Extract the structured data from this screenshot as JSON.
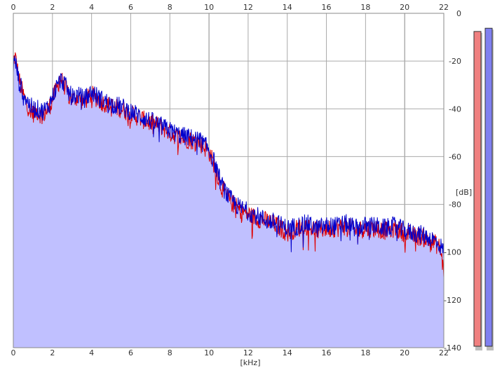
{
  "chart_data": {
    "type": "area",
    "xlabel": "[kHz]",
    "ylabel": "[dB]",
    "xlim": [
      0,
      22
    ],
    "ylim": [
      -140,
      0
    ],
    "x_ticks": [
      0,
      2,
      4,
      6,
      8,
      10,
      12,
      14,
      16,
      18,
      20,
      22
    ],
    "y_ticks": [
      0,
      -20,
      -40,
      -60,
      -80,
      -100,
      -120,
      -140
    ],
    "x_tick_labels": [
      "0",
      "2",
      "4",
      "6",
      "8",
      "10",
      "12",
      "14",
      "16",
      "18",
      "20",
      "22"
    ],
    "y_tick_labels": [
      "0",
      "-20",
      "-40",
      "-60",
      "-80",
      "-100",
      "-120",
      "-140"
    ],
    "grid": true,
    "fill_color": "#c0c0ff",
    "series": [
      {
        "color": "#e00000",
        "x": [
          0,
          0.1,
          0.3,
          0.5,
          0.8,
          1.0,
          1.2,
          1.5,
          1.8,
          2.0,
          2.2,
          2.4,
          2.6,
          2.8,
          3.0,
          3.3,
          3.6,
          4.0,
          4.5,
          5.0,
          5.5,
          6.0,
          6.5,
          7.0,
          7.5,
          8.0,
          8.5,
          9.0,
          9.5,
          10.0,
          10.3,
          10.6,
          11.0,
          11.5,
          12.0,
          12.5,
          13.0,
          13.5,
          14.0,
          14.5,
          15.0,
          15.5,
          16.0,
          16.5,
          17.0,
          17.5,
          18.0,
          18.5,
          19.0,
          19.5,
          20.0,
          20.5,
          21.0,
          21.5,
          21.8,
          22.0
        ],
        "values": [
          -20,
          -18,
          -28,
          -34,
          -40,
          -42,
          -41,
          -43,
          -40,
          -36,
          -32,
          -27,
          -30,
          -34,
          -36,
          -35,
          -37,
          -34,
          -37,
          -39,
          -40,
          -42,
          -44,
          -46,
          -47,
          -50,
          -52,
          -53,
          -54,
          -58,
          -64,
          -72,
          -78,
          -82,
          -84,
          -86,
          -87,
          -89,
          -92,
          -90,
          -89,
          -91,
          -90,
          -90,
          -89,
          -91,
          -90,
          -90,
          -91,
          -90,
          -92,
          -93,
          -94,
          -96,
          -98,
          -108
        ]
      },
      {
        "color": "#0000cc",
        "x": [
          0,
          0.1,
          0.3,
          0.5,
          0.8,
          1.0,
          1.2,
          1.5,
          1.8,
          2.0,
          2.2,
          2.4,
          2.6,
          2.8,
          3.0,
          3.3,
          3.6,
          4.0,
          4.5,
          5.0,
          5.5,
          6.0,
          6.5,
          7.0,
          7.5,
          8.0,
          8.5,
          9.0,
          9.5,
          10.0,
          10.3,
          10.6,
          11.0,
          11.5,
          12.0,
          12.5,
          13.0,
          13.5,
          14.0,
          14.5,
          15.0,
          15.5,
          16.0,
          16.5,
          17.0,
          17.5,
          18.0,
          18.5,
          19.0,
          19.5,
          20.0,
          20.5,
          21.0,
          21.5,
          21.8,
          22.0
        ],
        "values": [
          -22,
          -20,
          -29,
          -33,
          -38,
          -40,
          -40,
          -41,
          -39,
          -35,
          -31,
          -28,
          -29,
          -33,
          -35,
          -34,
          -36,
          -33,
          -36,
          -38,
          -39,
          -41,
          -43,
          -45,
          -47,
          -49,
          -51,
          -52,
          -53,
          -57,
          -63,
          -71,
          -77,
          -81,
          -83,
          -85,
          -87,
          -88,
          -90,
          -89,
          -88,
          -90,
          -89,
          -89,
          -88,
          -90,
          -89,
          -89,
          -90,
          -89,
          -91,
          -92,
          -93,
          -95,
          -97,
          -100
        ]
      }
    ]
  },
  "level_meters": [
    {
      "color": "#f08080",
      "level": 0.97
    },
    {
      "color": "#8080f0",
      "level": 0.98
    }
  ]
}
